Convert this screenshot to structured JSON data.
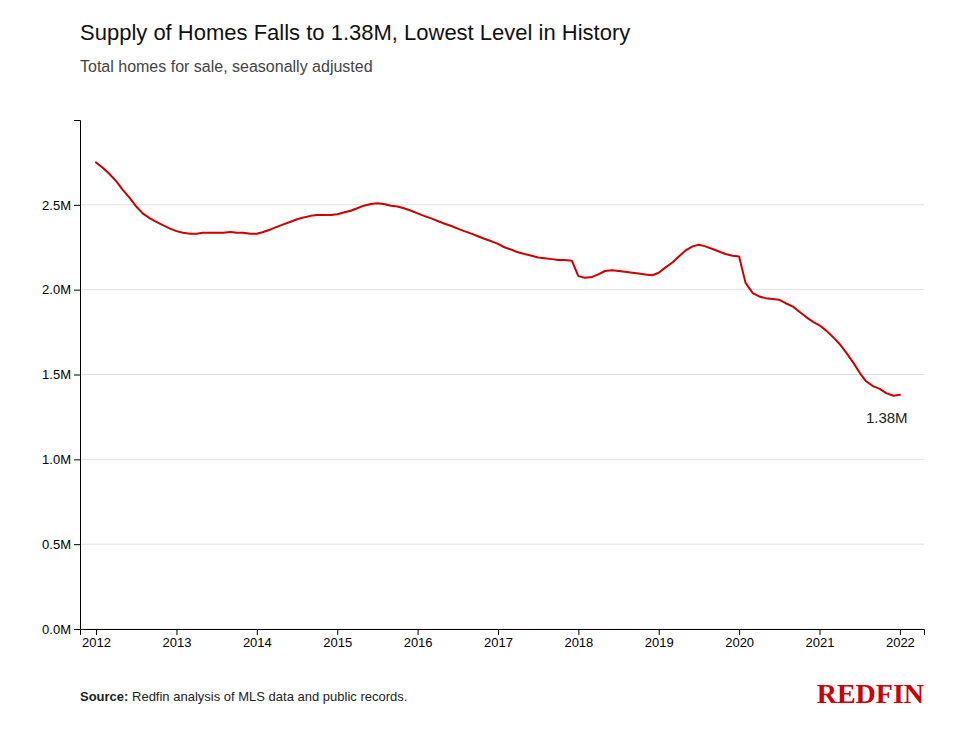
{
  "chart_data": {
    "type": "line",
    "title": "Supply of Homes Falls to 1.38M, Lowest Level in History",
    "subtitle": "Total homes for sale, seasonally adjusted",
    "source_label": "Source:",
    "source": " Redfin analysis of MLS data and public records.",
    "logo": {
      "text": "REDFIN",
      "color": "#cc0000"
    },
    "color": "#cc0000",
    "annotations": [
      {
        "text": "1.38M",
        "x": 2022.0,
        "y": 1380000
      }
    ],
    "x": [
      2012.0,
      2012.08,
      2012.17,
      2012.25,
      2012.33,
      2012.42,
      2012.5,
      2012.58,
      2012.67,
      2012.75,
      2012.83,
      2012.92,
      2013.0,
      2013.08,
      2013.17,
      2013.25,
      2013.33,
      2013.42,
      2013.5,
      2013.58,
      2013.67,
      2013.75,
      2013.83,
      2013.92,
      2014.0,
      2014.08,
      2014.17,
      2014.25,
      2014.33,
      2014.42,
      2014.5,
      2014.58,
      2014.67,
      2014.75,
      2014.83,
      2014.92,
      2015.0,
      2015.08,
      2015.17,
      2015.25,
      2015.33,
      2015.42,
      2015.5,
      2015.58,
      2015.67,
      2015.75,
      2015.83,
      2015.92,
      2016.0,
      2016.08,
      2016.17,
      2016.25,
      2016.33,
      2016.42,
      2016.5,
      2016.58,
      2016.67,
      2016.75,
      2016.83,
      2016.92,
      2017.0,
      2017.08,
      2017.17,
      2017.25,
      2017.33,
      2017.42,
      2017.5,
      2017.58,
      2017.67,
      2017.75,
      2017.83,
      2017.92,
      2018.0,
      2018.08,
      2018.17,
      2018.25,
      2018.33,
      2018.42,
      2018.5,
      2018.58,
      2018.67,
      2018.75,
      2018.83,
      2018.92,
      2019.0,
      2019.08,
      2019.17,
      2019.25,
      2019.33,
      2019.42,
      2019.5,
      2019.58,
      2019.67,
      2019.75,
      2019.83,
      2019.92,
      2020.0,
      2020.08,
      2020.17,
      2020.25,
      2020.33,
      2020.42,
      2020.5,
      2020.58,
      2020.67,
      2020.75,
      2020.83,
      2020.92,
      2021.0,
      2021.08,
      2021.17,
      2021.25,
      2021.33,
      2021.42,
      2021.5,
      2021.58,
      2021.67,
      2021.75,
      2021.83,
      2021.92,
      2022.0
    ],
    "values": [
      2750000,
      2720000,
      2680000,
      2640000,
      2590000,
      2540000,
      2490000,
      2450000,
      2420000,
      2400000,
      2380000,
      2360000,
      2345000,
      2335000,
      2330000,
      2330000,
      2335000,
      2335000,
      2335000,
      2335000,
      2340000,
      2335000,
      2335000,
      2330000,
      2330000,
      2340000,
      2355000,
      2370000,
      2385000,
      2400000,
      2415000,
      2425000,
      2435000,
      2440000,
      2440000,
      2440000,
      2445000,
      2455000,
      2465000,
      2480000,
      2495000,
      2505000,
      2510000,
      2505000,
      2495000,
      2490000,
      2480000,
      2465000,
      2450000,
      2435000,
      2420000,
      2405000,
      2390000,
      2375000,
      2360000,
      2345000,
      2330000,
      2315000,
      2300000,
      2285000,
      2270000,
      2250000,
      2235000,
      2220000,
      2210000,
      2200000,
      2190000,
      2185000,
      2180000,
      2175000,
      2175000,
      2170000,
      2080000,
      2070000,
      2075000,
      2090000,
      2110000,
      2115000,
      2110000,
      2105000,
      2100000,
      2095000,
      2090000,
      2085000,
      2100000,
      2130000,
      2160000,
      2195000,
      2230000,
      2255000,
      2265000,
      2255000,
      2240000,
      2225000,
      2210000,
      2200000,
      2195000,
      2040000,
      1980000,
      1960000,
      1950000,
      1945000,
      1940000,
      1920000,
      1900000,
      1870000,
      1840000,
      1810000,
      1790000,
      1760000,
      1720000,
      1680000,
      1630000,
      1570000,
      1510000,
      1460000,
      1430000,
      1415000,
      1390000,
      1375000,
      1380000
    ],
    "xlim": [
      2011.8,
      2022.3
    ],
    "xticks": [
      2012,
      2013,
      2014,
      2015,
      2016,
      2017,
      2018,
      2019,
      2020,
      2021,
      2022
    ],
    "ylim": [
      0,
      3000000
    ],
    "yticks": [
      {
        "value": 0,
        "label": "0.0M"
      },
      {
        "value": 500000,
        "label": "0.5M"
      },
      {
        "value": 1000000,
        "label": "1.0M"
      },
      {
        "value": 1500000,
        "label": "1.5M"
      },
      {
        "value": 2000000,
        "label": "2.0M"
      },
      {
        "value": 2500000,
        "label": "2.5M"
      }
    ],
    "grid": true
  }
}
